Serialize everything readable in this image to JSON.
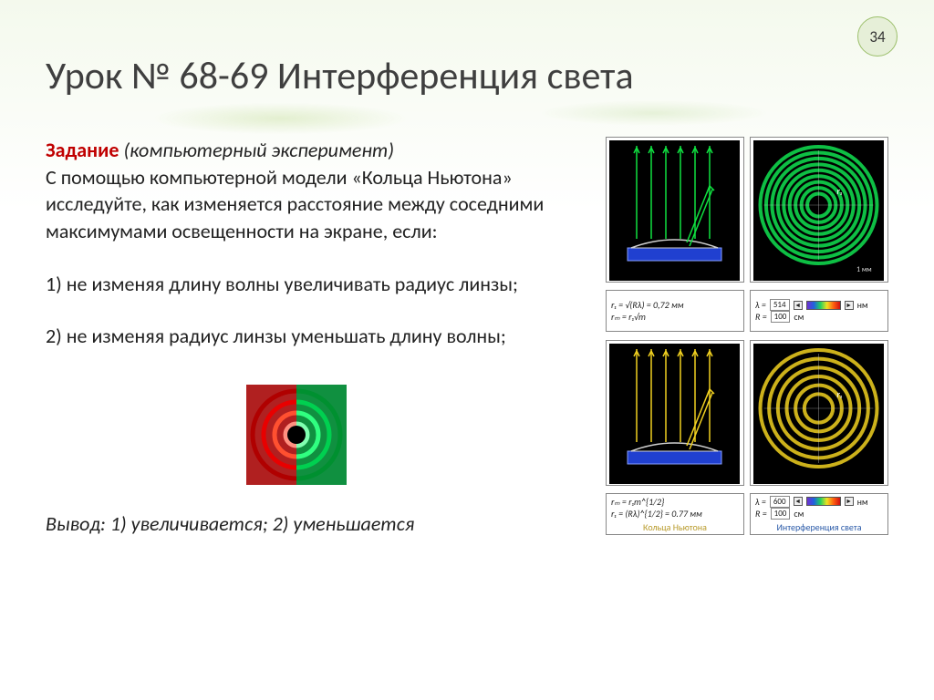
{
  "page_number": "34",
  "title": "Урок № 68-69 Интерференция света",
  "task": {
    "label": "Задание",
    "kind": "(компьютерный эксперимент)",
    "body": "С помощью компьютерной модели «Кольца Ньютона» исследуйте, как изменяется расстояние между соседними максимумами освещенности на экране, если:"
  },
  "questions": [
    "1) не изменяя длину волны увеличивать радиус линзы;",
    "2) не изменяя радиус линзы уменьшать длину волны;"
  ],
  "conclusion": "Вывод: 1) увеличивается; 2) уменьшается",
  "mini_diagram": {
    "left_bg": "#b02020",
    "right_bg": "#109040",
    "ring_colors": [
      "#e80000",
      "#ff5030",
      "#ffa080",
      "#00e060",
      "#40ff90"
    ],
    "size": 110
  },
  "sim_green": {
    "bg": "#000000",
    "ray_color": "#10e040",
    "lens_stroke": "#d0d0d0",
    "base_fill": "#2040d0",
    "ring_color": "#10e050",
    "ring_count": 9,
    "label_r": "r₁",
    "scale_label": "1 мм",
    "caption": ""
  },
  "sim_yellow": {
    "bg": "#000000",
    "ray_color": "#f0d020",
    "lens_stroke": "#d0d0d0",
    "base_fill": "#2040d0",
    "ring_color": "#f0d020",
    "ring_count": 6,
    "label_r": "r₁",
    "caption_left": "Кольца Ньютона",
    "caption_right": "Интерференция света"
  },
  "ctrl_green_left": {
    "line1_html": "r₁ = √(Rλ) = 0,72 мм",
    "line2_html": "rₘ = r₁√m"
  },
  "ctrl_green_right": {
    "lambda_val": "514",
    "lambda_unit": "нм",
    "R_val": "100",
    "R_unit": "см"
  },
  "ctrl_yellow_left": {
    "line1_html": "rₘ = r₁m^{1/2}",
    "line2_html": "r₁ = (Rλ)^{1/2} = 0.77 мм"
  },
  "ctrl_yellow_right": {
    "lambda_val": "600",
    "lambda_unit": "нм",
    "R_val": "100",
    "R_unit": "см"
  },
  "colors": {
    "title": "#3f3f3f",
    "task_label": "#c00000",
    "badge_bg": "#e6efd8",
    "badge_border": "#9bbf6a"
  }
}
